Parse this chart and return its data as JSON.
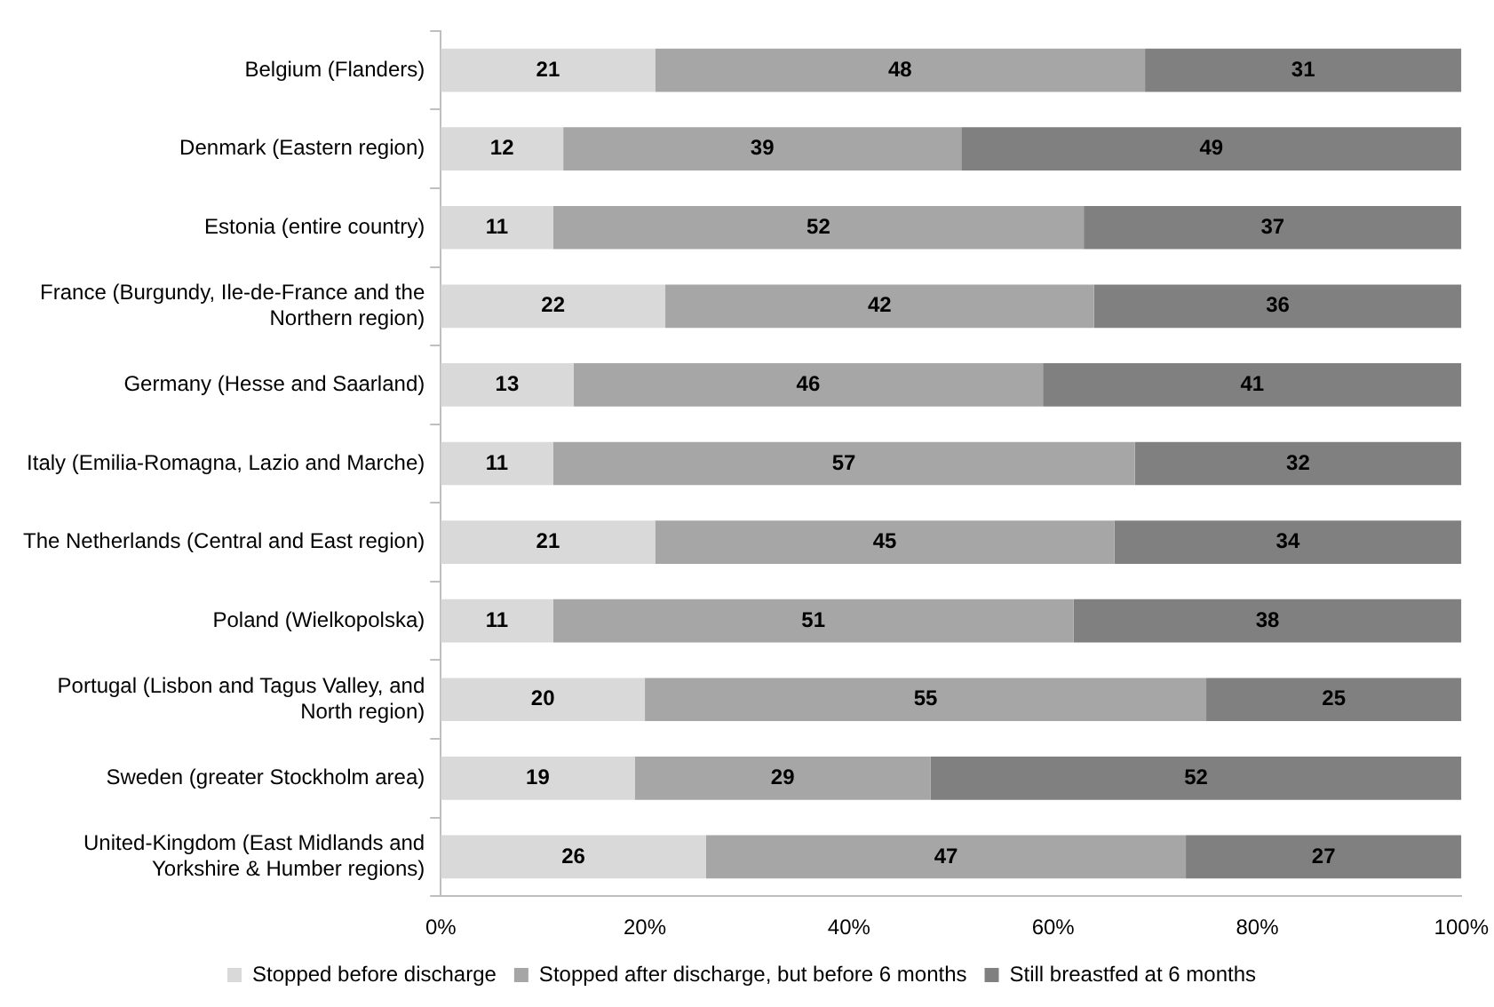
{
  "chart_data": {
    "type": "bar",
    "orientation": "horizontal",
    "stacked": true,
    "data_labels": true,
    "legend": "bottom",
    "grid": false,
    "categories": [
      "Belgium (Flanders)",
      "Denmark (Eastern region)",
      "Estonia (entire country)",
      "France (Burgundy, Ile-de-France and the Northern region)",
      "Germany (Hesse and Saarland)",
      "Italy (Emilia-Romagna, Lazio and Marche)",
      "The Netherlands (Central and East region)",
      "Poland (Wielkopolska)",
      "Portugal (Lisbon and Tagus Valley, and North region)",
      "Sweden (greater Stockholm area)",
      "United-Kingdom (East Midlands and Yorkshire & Humber regions)"
    ],
    "series": [
      {
        "name": "Stopped before discharge",
        "color": "#d9d9d9",
        "values": [
          21,
          12,
          11,
          22,
          13,
          11,
          21,
          11,
          20,
          19,
          26
        ]
      },
      {
        "name": "Stopped after discharge, but before 6 months",
        "color": "#a6a6a6",
        "values": [
          48,
          39,
          52,
          42,
          46,
          57,
          45,
          51,
          55,
          29,
          47
        ]
      },
      {
        "name": "Still breastfed at 6 months",
        "color": "#808080",
        "values": [
          31,
          49,
          37,
          36,
          41,
          32,
          34,
          38,
          25,
          52,
          27
        ]
      }
    ],
    "xlim": [
      0,
      100
    ],
    "xticks": [
      {
        "value": 0,
        "label": "0%"
      },
      {
        "value": 20,
        "label": "20%"
      },
      {
        "value": 40,
        "label": "40%"
      },
      {
        "value": 60,
        "label": "60%"
      },
      {
        "value": 80,
        "label": "80%"
      },
      {
        "value": 100,
        "label": "100%"
      }
    ]
  }
}
